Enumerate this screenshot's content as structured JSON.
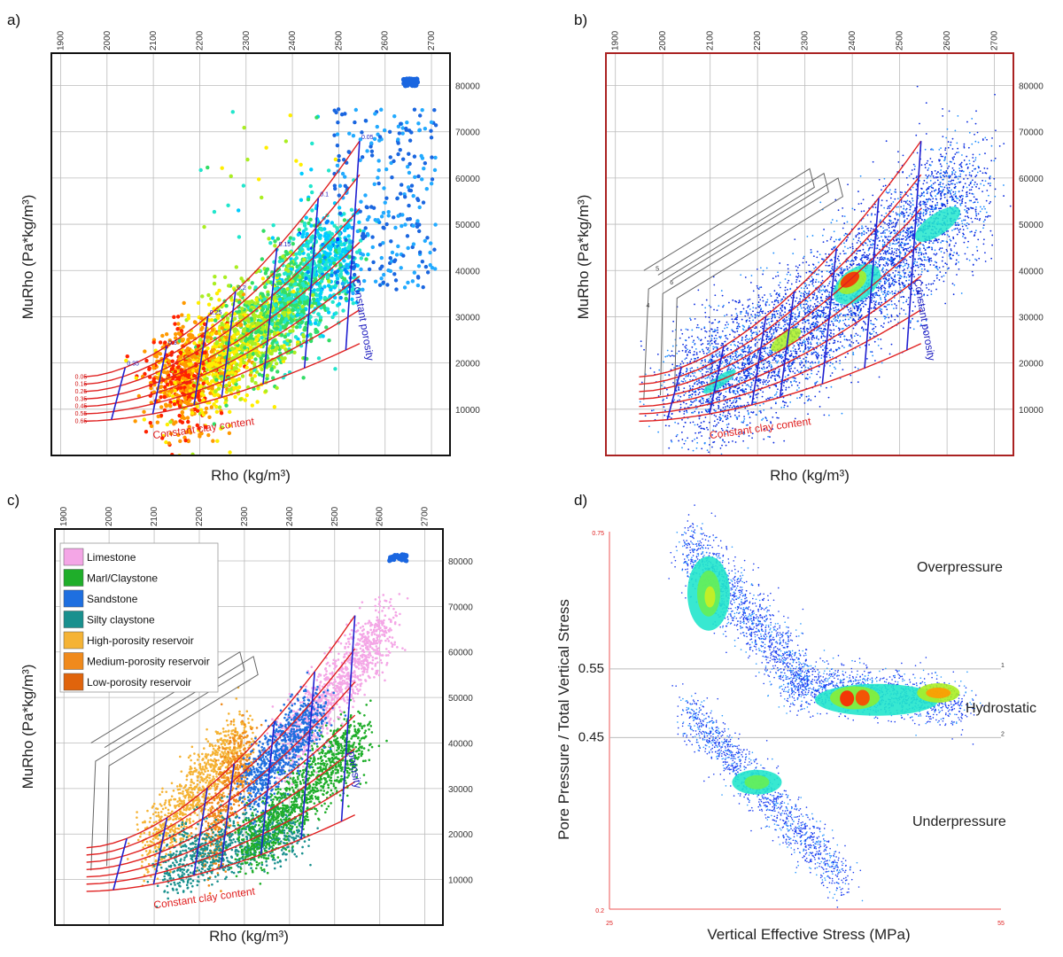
{
  "chart_data": [
    {
      "id": "a",
      "type": "scatter",
      "panel_label": "a)",
      "xlabel": "Rho (kg/m³)",
      "ylabel": "MuRho (Pa*kg/m³)",
      "xlim": [
        1880,
        2740
      ],
      "ylim": [
        0,
        87000
      ],
      "x_ticks": [
        "1900",
        "2000",
        "2100",
        "2200",
        "2300",
        "2400",
        "2500",
        "2600",
        "2700"
      ],
      "y_ticks": [
        "10000",
        "20000",
        "30000",
        "40000",
        "50000",
        "60000",
        "70000",
        "80000"
      ],
      "annotations": [
        "Constant clay content",
        "Constant porosity"
      ],
      "clay_labels": [
        "0.05",
        "0.15",
        "0.25",
        "0.35",
        "0.45",
        "0.55",
        "0.65"
      ],
      "porosity_labels": [
        "0.35",
        "0.3",
        "0.25",
        "0.2",
        "0.15",
        "0.1",
        "0.05"
      ]
    },
    {
      "id": "b",
      "type": "heatmap",
      "panel_label": "b)",
      "xlabel": "Rho (kg/m³)",
      "ylabel": "MuRho (Pa*kg/m³)",
      "xlim": [
        1880,
        2740
      ],
      "ylim": [
        0,
        87000
      ],
      "x_ticks": [
        "1900",
        "2000",
        "2100",
        "2200",
        "2300",
        "2400",
        "2500",
        "2600",
        "2700"
      ],
      "y_ticks": [
        "10000",
        "20000",
        "30000",
        "40000",
        "50000",
        "60000",
        "70000",
        "80000"
      ],
      "annotations": [
        "Constant clay content",
        "Constant porosity"
      ],
      "polygon_labels": [
        "4",
        "5",
        "6"
      ]
    },
    {
      "id": "c",
      "type": "scatter",
      "panel_label": "c)",
      "xlabel": "Rho (kg/m³)",
      "ylabel": "MuRho (Pa*kg/m³)",
      "xlim": [
        1880,
        2740
      ],
      "ylim": [
        0,
        87000
      ],
      "x_ticks": [
        "1900",
        "2000",
        "2100",
        "2200",
        "2300",
        "2400",
        "2500",
        "2600",
        "2700"
      ],
      "y_ticks": [
        "10000",
        "20000",
        "30000",
        "40000",
        "50000",
        "60000",
        "70000",
        "80000"
      ],
      "annotations": [
        "Constant clay content",
        "porosity"
      ],
      "legend": [
        {
          "name": "Limestone",
          "color": "#f4a6e6"
        },
        {
          "name": "Marl/Claystone",
          "color": "#1fae2a"
        },
        {
          "name": "Sandstone",
          "color": "#1e6fe0"
        },
        {
          "name": "Silty claystone",
          "color": "#19908e"
        },
        {
          "name": "High-porosity reservoir",
          "color": "#f5b335"
        },
        {
          "name": "Medium-porosity reservoir",
          "color": "#f08a1c"
        },
        {
          "name": "Low-porosity reservoir",
          "color": "#e0640c"
        }
      ]
    },
    {
      "id": "d",
      "type": "heatmap",
      "panel_label": "d)",
      "xlabel": "Vertical Effective Stress (MPa)",
      "ylabel": "Pore Pressure / Total Vertical Stress",
      "xlim": [
        25,
        55
      ],
      "ylim": [
        0.2,
        0.75
      ],
      "x_ticks": [
        "25",
        "55"
      ],
      "y_ticks": [
        "0.2",
        "0.45",
        "0.55",
        "0.75"
      ],
      "reference_lines": [
        {
          "y": 0.55,
          "label": "1"
        },
        {
          "y": 0.45,
          "label": "2"
        }
      ],
      "regions": [
        "Overpressure",
        "Hydrostatic",
        "Underpressure"
      ]
    }
  ]
}
